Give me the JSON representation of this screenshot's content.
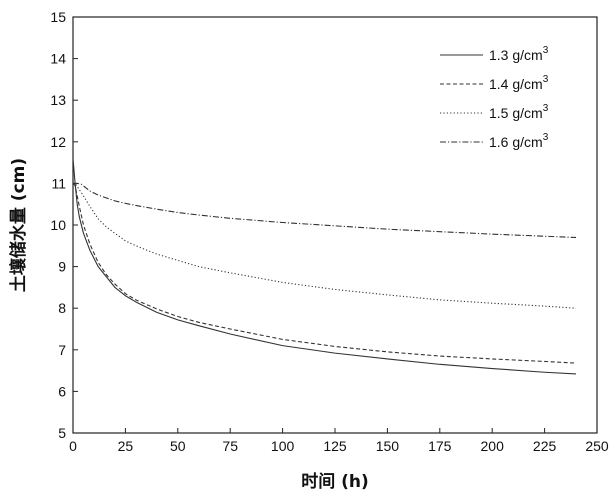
{
  "chart_data": {
    "type": "line",
    "xlabel": "时间 (h)",
    "ylabel": "土壤储水量 (cm)",
    "xlim": [
      0,
      250
    ],
    "ylim": [
      5,
      15
    ],
    "x_ticks": [
      0,
      25,
      50,
      75,
      100,
      125,
      150,
      175,
      200,
      225,
      250
    ],
    "y_ticks": [
      5,
      6,
      7,
      8,
      9,
      10,
      11,
      12,
      13,
      14,
      15
    ],
    "x_tick_labels": [
      "0",
      "25",
      "50",
      "75",
      "100",
      "125",
      "150",
      "175",
      "200",
      "225",
      "250"
    ],
    "y_tick_labels": [
      "5",
      "6",
      "7",
      "8",
      "9",
      "10",
      "11",
      "12",
      "13",
      "14",
      "15"
    ],
    "legend_position": "top-right",
    "series": [
      {
        "name": "1.3 g/cm³",
        "legend_base": "1.3 g/cm",
        "legend_sup": "3",
        "dash": "solid",
        "color": "#333333",
        "x": [
          0,
          1,
          2,
          3,
          5,
          8,
          12,
          16,
          20,
          25,
          30,
          40,
          50,
          60,
          75,
          100,
          125,
          150,
          175,
          200,
          225,
          240
        ],
        "values": [
          11.6,
          11.0,
          10.5,
          10.2,
          9.8,
          9.4,
          9.0,
          8.75,
          8.5,
          8.3,
          8.15,
          7.9,
          7.72,
          7.58,
          7.38,
          7.1,
          6.92,
          6.78,
          6.65,
          6.55,
          6.46,
          6.42
        ]
      },
      {
        "name": "1.4 g/cm³",
        "legend_base": "1.4 g/cm",
        "legend_sup": "3",
        "dash": "dashed",
        "color": "#333333",
        "x": [
          0,
          1,
          2,
          3,
          5,
          8,
          12,
          16,
          20,
          25,
          30,
          40,
          50,
          60,
          75,
          100,
          125,
          150,
          175,
          200,
          225,
          240
        ],
        "values": [
          11.0,
          10.95,
          10.7,
          10.45,
          10.0,
          9.55,
          9.1,
          8.8,
          8.58,
          8.35,
          8.2,
          7.98,
          7.8,
          7.66,
          7.5,
          7.25,
          7.08,
          6.95,
          6.85,
          6.78,
          6.72,
          6.68
        ]
      },
      {
        "name": "1.5 g/cm³",
        "legend_base": "1.5 g/cm",
        "legend_sup": "3",
        "dash": "dotted",
        "color": "#333333",
        "x": [
          0,
          1,
          3,
          5,
          8,
          12,
          16,
          20,
          25,
          30,
          40,
          50,
          60,
          75,
          100,
          125,
          150,
          175,
          200,
          225,
          240
        ],
        "values": [
          11.0,
          11.0,
          10.85,
          10.7,
          10.45,
          10.15,
          9.95,
          9.8,
          9.62,
          9.5,
          9.3,
          9.15,
          9.0,
          8.85,
          8.62,
          8.45,
          8.32,
          8.2,
          8.12,
          8.05,
          8.0
        ]
      },
      {
        "name": "1.6 g/cm³",
        "legend_base": "1.6 g/cm",
        "legend_sup": "3",
        "dash": "dashdot",
        "color": "#333333",
        "x": [
          0,
          2,
          4,
          6,
          8,
          12,
          16,
          20,
          25,
          30,
          40,
          50,
          60,
          75,
          100,
          125,
          150,
          175,
          200,
          225,
          240
        ],
        "values": [
          11.0,
          11.0,
          10.98,
          10.9,
          10.82,
          10.72,
          10.65,
          10.58,
          10.52,
          10.47,
          10.38,
          10.3,
          10.24,
          10.16,
          10.06,
          9.98,
          9.9,
          9.84,
          9.78,
          9.73,
          9.7
        ]
      }
    ]
  }
}
